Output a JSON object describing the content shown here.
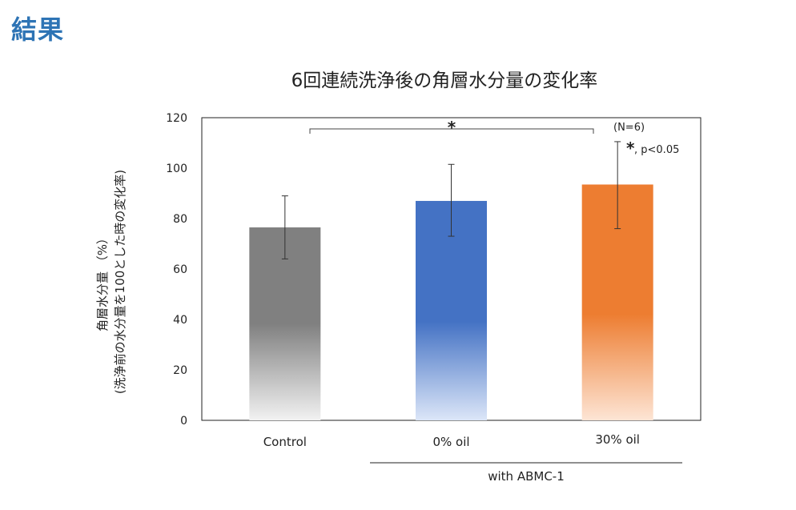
{
  "heading": "結果",
  "chart_data": {
    "type": "bar",
    "title": "6回連続洗浄後の角層水分量の変化率",
    "ylabel_line1": "角層水分量 （%）",
    "ylabel_line2": "(洗浄前の水分量を100とした時の変化率)",
    "xlabel": "",
    "categories": [
      "Control",
      "0% oil",
      "30% oil"
    ],
    "values": [
      76.5,
      87,
      93.5
    ],
    "error_upper": [
      89,
      101.5,
      110.5
    ],
    "error_lower": [
      64,
      73,
      76
    ],
    "colors": [
      "#808080",
      "#4472c4",
      "#ed7d31"
    ],
    "ylim": [
      0,
      120
    ],
    "yticks": [
      "0",
      "20",
      "40",
      "60",
      "80",
      "100",
      "120"
    ],
    "group_label": "with ABMC-1",
    "significance_mark": "*",
    "n_note": "(N=6)",
    "p_note_mark": "*",
    "p_note_text": ", p<0.05",
    "grid": false,
    "legend": "none"
  }
}
